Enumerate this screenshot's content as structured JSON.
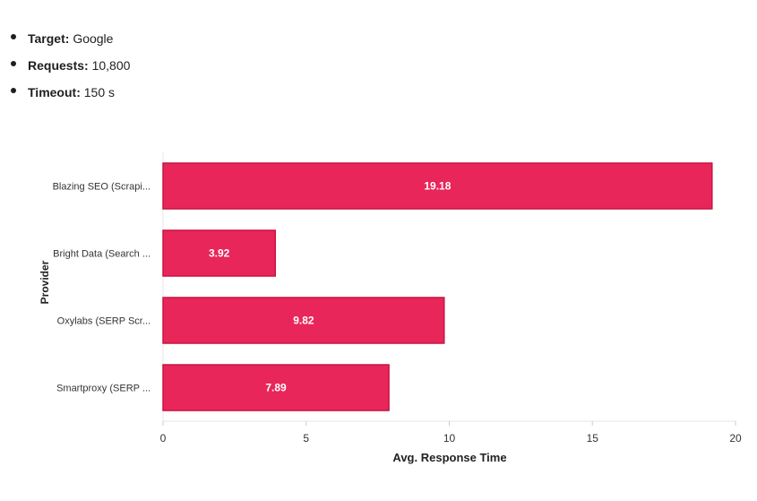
{
  "info": [
    {
      "label": "Target:",
      "value": "Google"
    },
    {
      "label": "Requests:",
      "value": "10,800"
    },
    {
      "label": "Timeout:",
      "value": "150 s"
    }
  ],
  "chart_data": {
    "type": "bar",
    "orientation": "horizontal",
    "categories": [
      "Blazing SEO (Scrapi...",
      "Bright Data (Search ...",
      "Oxylabs (SERP Scr...",
      "Smartproxy (SERP ..."
    ],
    "values": [
      19.18,
      3.92,
      9.82,
      7.89
    ],
    "data_labels": [
      "19.18",
      "3.92",
      "9.82",
      "7.89"
    ],
    "title": "",
    "xlabel": "Avg. Response Time",
    "ylabel": "Provider",
    "xlim": [
      0,
      20
    ],
    "xticks": [
      "0",
      "5",
      "10",
      "15",
      "20"
    ],
    "bar_color": "#e8265a",
    "bar_border_color": "#c8143f",
    "label_color": "#ffffff",
    "grid": false,
    "legend": "none"
  }
}
